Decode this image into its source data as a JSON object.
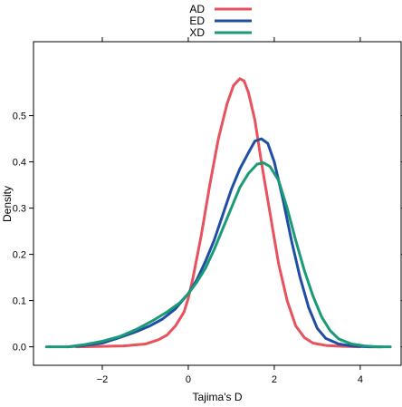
{
  "chart_data": {
    "type": "line",
    "xlabel": "Tajima's D",
    "ylabel": "Density",
    "xlim": [
      -3.6,
      4.95
    ],
    "ylim": [
      -0.04,
      0.66
    ],
    "x_ticks": [
      -2,
      0,
      2,
      4
    ],
    "x_tick_labels": [
      "−2",
      "0",
      "2",
      "4"
    ],
    "y_ticks": [
      0.0,
      0.1,
      0.2,
      0.3,
      0.4,
      0.5
    ],
    "y_tick_labels": [
      "0.0",
      "0.1",
      "0.2",
      "0.3",
      "0.4",
      "0.5"
    ],
    "grid": false,
    "legend_position": "top",
    "series": [
      {
        "name": "AD",
        "color": "#e8525c",
        "points": [
          [
            -2.6,
            0.0
          ],
          [
            -2.0,
            0.001
          ],
          [
            -1.5,
            0.002
          ],
          [
            -1.0,
            0.006
          ],
          [
            -0.7,
            0.015
          ],
          [
            -0.5,
            0.025
          ],
          [
            -0.3,
            0.045
          ],
          [
            -0.1,
            0.075
          ],
          [
            0.0,
            0.105
          ],
          [
            0.1,
            0.145
          ],
          [
            0.3,
            0.24
          ],
          [
            0.5,
            0.35
          ],
          [
            0.7,
            0.45
          ],
          [
            0.9,
            0.525
          ],
          [
            1.05,
            0.565
          ],
          [
            1.2,
            0.58
          ],
          [
            1.3,
            0.575
          ],
          [
            1.4,
            0.55
          ],
          [
            1.55,
            0.49
          ],
          [
            1.7,
            0.4
          ],
          [
            1.9,
            0.29
          ],
          [
            2.1,
            0.18
          ],
          [
            2.3,
            0.1
          ],
          [
            2.5,
            0.045
          ],
          [
            2.7,
            0.02
          ],
          [
            2.9,
            0.008
          ],
          [
            3.2,
            0.003
          ],
          [
            3.6,
            0.001
          ],
          [
            4.0,
            0.0
          ]
        ]
      },
      {
        "name": "ED",
        "color": "#1f4ea3",
        "points": [
          [
            -2.8,
            0.0
          ],
          [
            -2.4,
            0.003
          ],
          [
            -2.0,
            0.008
          ],
          [
            -1.6,
            0.02
          ],
          [
            -1.2,
            0.033
          ],
          [
            -0.9,
            0.045
          ],
          [
            -0.6,
            0.06
          ],
          [
            -0.3,
            0.082
          ],
          [
            0.0,
            0.115
          ],
          [
            0.2,
            0.145
          ],
          [
            0.4,
            0.185
          ],
          [
            0.6,
            0.23
          ],
          [
            0.8,
            0.285
          ],
          [
            1.0,
            0.34
          ],
          [
            1.2,
            0.385
          ],
          [
            1.4,
            0.42
          ],
          [
            1.55,
            0.445
          ],
          [
            1.7,
            0.45
          ],
          [
            1.85,
            0.44
          ],
          [
            2.0,
            0.4
          ],
          [
            2.2,
            0.32
          ],
          [
            2.4,
            0.23
          ],
          [
            2.6,
            0.15
          ],
          [
            2.8,
            0.085
          ],
          [
            3.0,
            0.04
          ],
          [
            3.2,
            0.018
          ],
          [
            3.5,
            0.006
          ],
          [
            3.8,
            0.002
          ],
          [
            4.2,
            0.0
          ],
          [
            4.5,
            0.0
          ]
        ]
      },
      {
        "name": "XD",
        "color": "#1b9a78",
        "points": [
          [
            -3.3,
            0.0
          ],
          [
            -2.8,
            0.0
          ],
          [
            -2.4,
            0.005
          ],
          [
            -2.0,
            0.012
          ],
          [
            -1.6,
            0.022
          ],
          [
            -1.2,
            0.038
          ],
          [
            -0.8,
            0.058
          ],
          [
            -0.5,
            0.075
          ],
          [
            -0.2,
            0.095
          ],
          [
            0.0,
            0.115
          ],
          [
            0.2,
            0.14
          ],
          [
            0.4,
            0.17
          ],
          [
            0.6,
            0.21
          ],
          [
            0.8,
            0.255
          ],
          [
            1.0,
            0.3
          ],
          [
            1.2,
            0.345
          ],
          [
            1.4,
            0.375
          ],
          [
            1.6,
            0.395
          ],
          [
            1.75,
            0.398
          ],
          [
            1.9,
            0.39
          ],
          [
            2.1,
            0.36
          ],
          [
            2.3,
            0.3
          ],
          [
            2.5,
            0.23
          ],
          [
            2.7,
            0.165
          ],
          [
            2.9,
            0.11
          ],
          [
            3.1,
            0.065
          ],
          [
            3.3,
            0.035
          ],
          [
            3.5,
            0.017
          ],
          [
            3.8,
            0.006
          ],
          [
            4.1,
            0.002
          ],
          [
            4.4,
            0.0
          ],
          [
            4.7,
            0.0
          ]
        ]
      }
    ]
  }
}
